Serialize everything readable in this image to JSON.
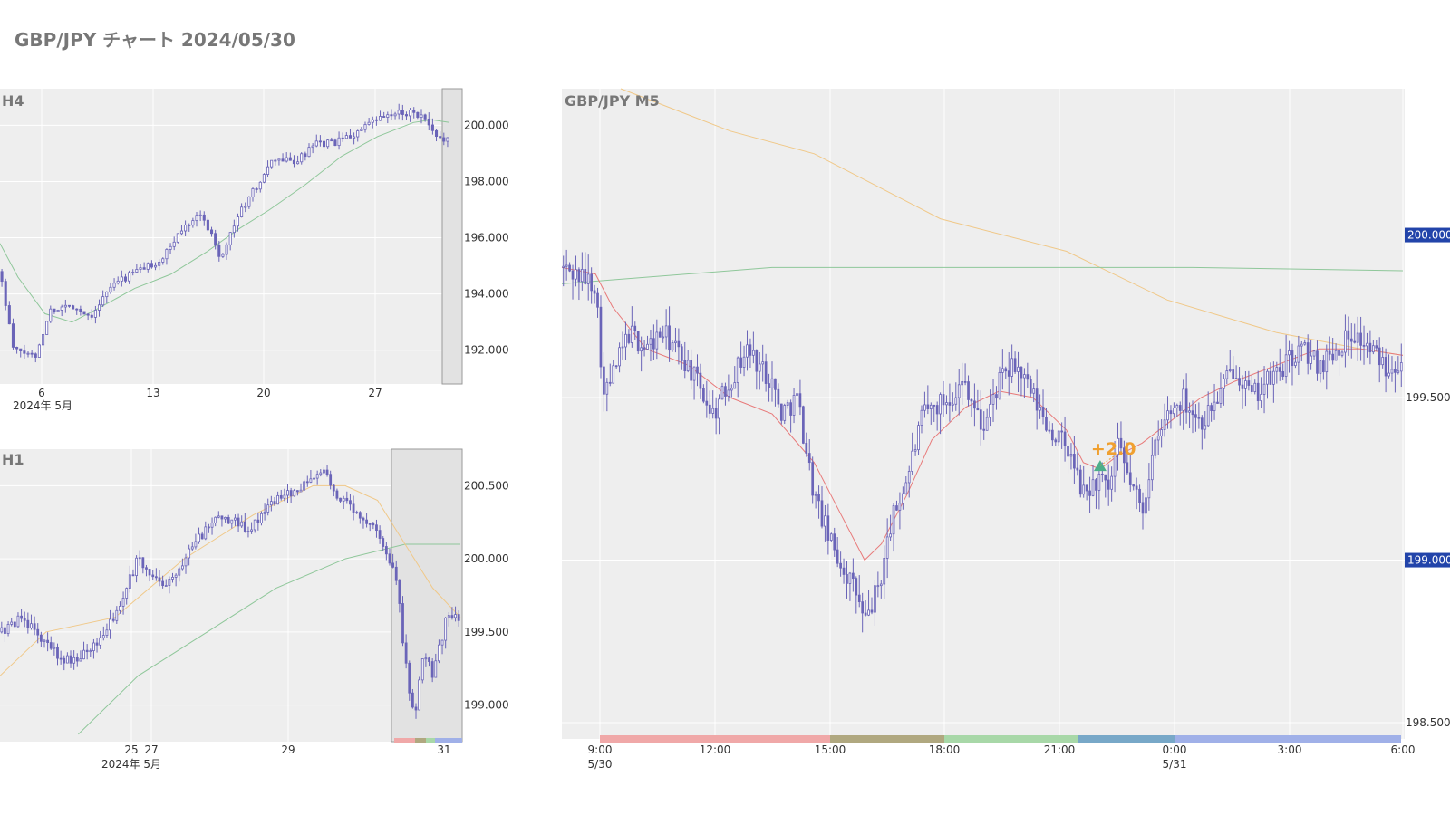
{
  "page": {
    "title": "GBP/JPY チャート 2024/05/30"
  },
  "colors": {
    "candle": "#6a64b8",
    "ma_short": "#e87a7a",
    "ma_mid": "#8fc79a",
    "ma_long": "#f0c888",
    "badge": "#2244aa",
    "plot_bg": "#eeeeee",
    "annotation": "#f0a030",
    "marker": "#4cae8a"
  },
  "panels": {
    "h4": {
      "label": "H4",
      "y_ticks": [
        "200.000",
        "198.000",
        "196.000",
        "194.000",
        "192.000"
      ],
      "x_ticks": [
        "6",
        "13",
        "20",
        "27"
      ],
      "x_sub": "2024年 5月"
    },
    "h1": {
      "label": "H1",
      "y_ticks": [
        "200.500",
        "200.000",
        "199.500",
        "199.000"
      ],
      "x_ticks": [
        "25",
        "27",
        "29",
        "31"
      ],
      "x_sub": "2024年 5月"
    },
    "m5": {
      "label": "GBP/JPY M5",
      "y_ticks": [
        "199.500",
        "198.500"
      ],
      "y_badges": [
        "200.000",
        "199.000"
      ],
      "x_ticks": [
        "9:00",
        "12:00",
        "15:00",
        "18:00",
        "21:00",
        "0:00",
        "3:00",
        "6:00"
      ],
      "x_sub": [
        "5/30",
        "5/31"
      ],
      "annotation": "+2.0",
      "session_colors": [
        "#f0a8a8",
        "#b0a880",
        "#a8d8a8",
        "#78a8c8",
        "#a0b0e8"
      ]
    }
  },
  "chart_data": [
    {
      "type": "candlestick",
      "title": "H4",
      "x_tick_labels": [
        "6",
        "13",
        "20",
        "27"
      ],
      "x_sub_label": "2024年 5月",
      "ylim": [
        190.8,
        201.3
      ],
      "close_path": [
        [
          0,
          194.8
        ],
        [
          0.03,
          192.0
        ],
        [
          0.08,
          191.8
        ],
        [
          0.11,
          193.4
        ],
        [
          0.16,
          193.6
        ],
        [
          0.2,
          193.2
        ],
        [
          0.25,
          194.3
        ],
        [
          0.3,
          194.8
        ],
        [
          0.36,
          195.2
        ],
        [
          0.4,
          196.2
        ],
        [
          0.44,
          196.9
        ],
        [
          0.47,
          196.2
        ],
        [
          0.49,
          195.3
        ],
        [
          0.53,
          196.8
        ],
        [
          0.57,
          197.8
        ],
        [
          0.61,
          198.8
        ],
        [
          0.66,
          198.7
        ],
        [
          0.7,
          199.3
        ],
        [
          0.75,
          199.4
        ],
        [
          0.79,
          199.7
        ],
        [
          0.84,
          200.2
        ],
        [
          0.88,
          200.4
        ],
        [
          0.92,
          200.5
        ],
        [
          0.95,
          200.1
        ],
        [
          0.97,
          199.5
        ],
        [
          1.0,
          199.6
        ]
      ],
      "ma_path": [
        [
          0,
          195.8
        ],
        [
          0.04,
          194.6
        ],
        [
          0.1,
          193.3
        ],
        [
          0.16,
          193.0
        ],
        [
          0.22,
          193.5
        ],
        [
          0.3,
          194.2
        ],
        [
          0.38,
          194.7
        ],
        [
          0.46,
          195.5
        ],
        [
          0.53,
          196.3
        ],
        [
          0.6,
          197.0
        ],
        [
          0.68,
          197.9
        ],
        [
          0.76,
          198.9
        ],
        [
          0.84,
          199.6
        ],
        [
          0.92,
          200.1
        ],
        [
          0.96,
          200.2
        ],
        [
          1.0,
          200.1
        ]
      ]
    },
    {
      "type": "candlestick",
      "title": "H1",
      "x_tick_labels": [
        "25",
        "27",
        "29",
        "31"
      ],
      "x_sub_label": "2024年 5月",
      "ylim": [
        198.75,
        200.75
      ],
      "close_path": [
        [
          0,
          199.5
        ],
        [
          0.05,
          199.6
        ],
        [
          0.1,
          199.4
        ],
        [
          0.15,
          199.3
        ],
        [
          0.2,
          199.4
        ],
        [
          0.25,
          199.6
        ],
        [
          0.3,
          200.0
        ],
        [
          0.36,
          199.8
        ],
        [
          0.42,
          200.1
        ],
        [
          0.48,
          200.3
        ],
        [
          0.54,
          200.2
        ],
        [
          0.6,
          200.4
        ],
        [
          0.66,
          200.5
        ],
        [
          0.7,
          200.6
        ],
        [
          0.74,
          200.4
        ],
        [
          0.78,
          200.3
        ],
        [
          0.82,
          200.2
        ],
        [
          0.86,
          199.9
        ],
        [
          0.88,
          199.3
        ],
        [
          0.9,
          198.9
        ],
        [
          0.92,
          199.4
        ],
        [
          0.94,
          199.2
        ],
        [
          0.97,
          199.6
        ],
        [
          1.0,
          199.6
        ]
      ],
      "ma_mid_path": [
        [
          0.17,
          198.8
        ],
        [
          0.3,
          199.2
        ],
        [
          0.45,
          199.5
        ],
        [
          0.6,
          199.8
        ],
        [
          0.75,
          200.0
        ],
        [
          0.88,
          200.1
        ],
        [
          1.0,
          200.1
        ]
      ],
      "ma_long_path": [
        [
          0,
          199.2
        ],
        [
          0.1,
          199.5
        ],
        [
          0.25,
          199.6
        ],
        [
          0.4,
          200.0
        ],
        [
          0.55,
          200.3
        ],
        [
          0.68,
          200.5
        ],
        [
          0.75,
          200.5
        ],
        [
          0.82,
          200.4
        ],
        [
          0.88,
          200.1
        ],
        [
          0.94,
          199.8
        ],
        [
          1.0,
          199.6
        ]
      ]
    },
    {
      "type": "candlestick",
      "title": "GBP/JPY M5",
      "x_tick_labels": [
        "9:00",
        "12:00",
        "15:00",
        "18:00",
        "21:00",
        "0:00",
        "3:00",
        "6:00"
      ],
      "x_sub_labels": [
        "5/30",
        "5/31"
      ],
      "ylim": [
        198.45,
        200.45
      ],
      "close_path": [
        [
          0,
          199.9
        ],
        [
          0.04,
          199.85
        ],
        [
          0.05,
          199.5
        ],
        [
          0.08,
          199.7
        ],
        [
          0.1,
          199.65
        ],
        [
          0.12,
          199.7
        ],
        [
          0.15,
          199.6
        ],
        [
          0.18,
          199.45
        ],
        [
          0.2,
          199.55
        ],
        [
          0.22,
          199.65
        ],
        [
          0.25,
          199.55
        ],
        [
          0.26,
          199.45
        ],
        [
          0.28,
          199.5
        ],
        [
          0.3,
          199.2
        ],
        [
          0.32,
          199.05
        ],
        [
          0.34,
          198.95
        ],
        [
          0.35,
          198.9
        ],
        [
          0.36,
          198.8
        ],
        [
          0.38,
          198.95
        ],
        [
          0.39,
          199.1
        ],
        [
          0.41,
          199.25
        ],
        [
          0.43,
          199.45
        ],
        [
          0.46,
          199.5
        ],
        [
          0.48,
          199.55
        ],
        [
          0.5,
          199.4
        ],
        [
          0.52,
          199.55
        ],
        [
          0.54,
          199.6
        ],
        [
          0.56,
          199.5
        ],
        [
          0.58,
          199.4
        ],
        [
          0.6,
          199.35
        ],
        [
          0.62,
          199.2
        ],
        [
          0.64,
          199.25
        ],
        [
          0.65,
          199.2
        ],
        [
          0.66,
          199.35
        ],
        [
          0.67,
          199.28
        ],
        [
          0.69,
          199.15
        ],
        [
          0.7,
          199.3
        ],
        [
          0.72,
          199.45
        ],
        [
          0.74,
          199.5
        ],
        [
          0.76,
          199.42
        ],
        [
          0.78,
          199.5
        ],
        [
          0.8,
          199.6
        ],
        [
          0.82,
          199.5
        ],
        [
          0.84,
          199.55
        ],
        [
          0.86,
          199.6
        ],
        [
          0.88,
          199.65
        ],
        [
          0.9,
          199.6
        ],
        [
          0.92,
          199.65
        ],
        [
          0.94,
          199.7
        ],
        [
          0.96,
          199.65
        ],
        [
          0.98,
          199.6
        ],
        [
          1.0,
          199.62
        ]
      ],
      "ma_short_path": [
        [
          0,
          199.9
        ],
        [
          0.04,
          199.88
        ],
        [
          0.06,
          199.78
        ],
        [
          0.1,
          199.65
        ],
        [
          0.15,
          199.6
        ],
        [
          0.2,
          199.5
        ],
        [
          0.25,
          199.45
        ],
        [
          0.3,
          199.3
        ],
        [
          0.33,
          199.15
        ],
        [
          0.36,
          199.0
        ],
        [
          0.38,
          199.05
        ],
        [
          0.41,
          199.2
        ],
        [
          0.44,
          199.37
        ],
        [
          0.48,
          199.47
        ],
        [
          0.52,
          199.52
        ],
        [
          0.56,
          199.5
        ],
        [
          0.6,
          199.4
        ],
        [
          0.62,
          199.3
        ],
        [
          0.64,
          199.28
        ],
        [
          0.66,
          199.32
        ],
        [
          0.69,
          199.36
        ],
        [
          0.72,
          199.42
        ],
        [
          0.76,
          199.5
        ],
        [
          0.8,
          199.55
        ],
        [
          0.85,
          199.6
        ],
        [
          0.9,
          199.65
        ],
        [
          0.95,
          199.65
        ],
        [
          1.0,
          199.63
        ]
      ],
      "ma_mid_path": [
        [
          0,
          199.85
        ],
        [
          0.25,
          199.9
        ],
        [
          0.5,
          199.9
        ],
        [
          0.75,
          199.9
        ],
        [
          1.0,
          199.89
        ]
      ],
      "ma_long_path": [
        [
          0.07,
          200.45
        ],
        [
          0.2,
          200.32
        ],
        [
          0.3,
          200.25
        ],
        [
          0.45,
          200.05
        ],
        [
          0.6,
          199.95
        ],
        [
          0.72,
          199.8
        ],
        [
          0.85,
          199.7
        ],
        [
          0.95,
          199.65
        ],
        [
          1.0,
          199.63
        ]
      ],
      "annotation": {
        "text": "+2.0",
        "x": 0.64,
        "y": 199.33
      }
    }
  ]
}
